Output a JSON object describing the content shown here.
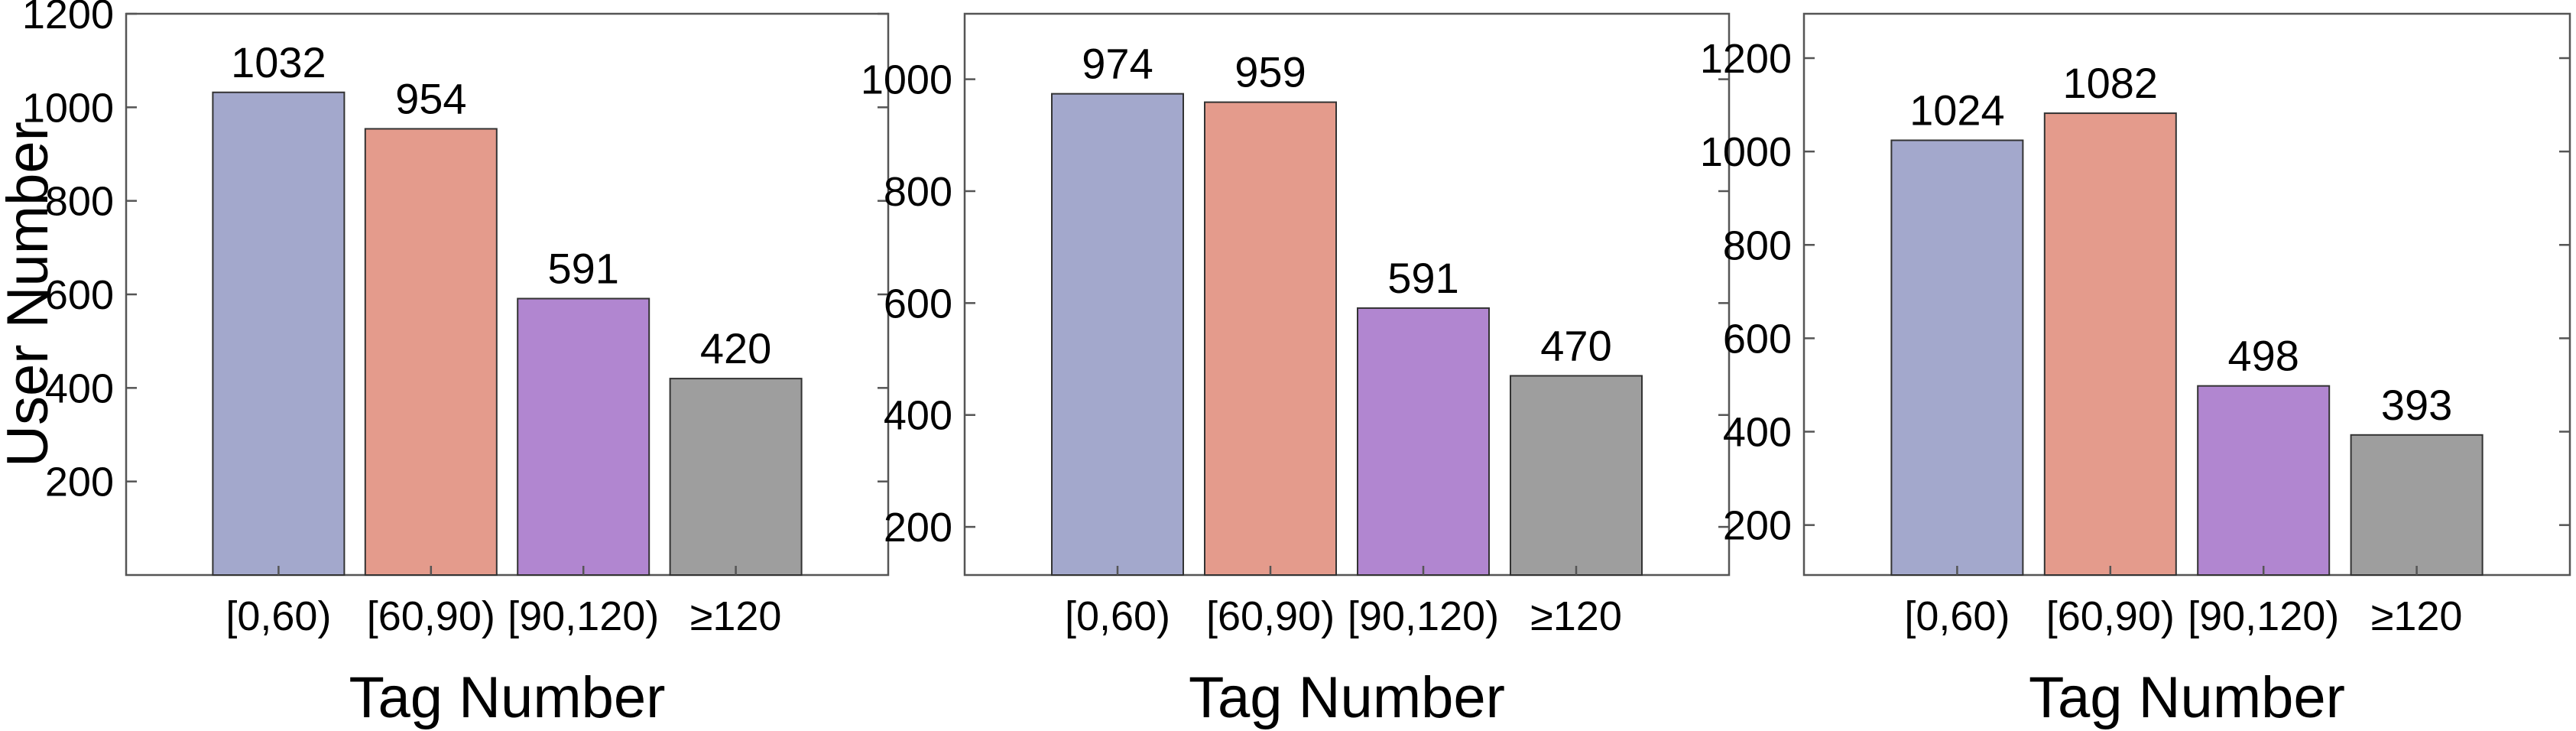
{
  "chart_data": [
    {
      "type": "bar",
      "categories": [
        "[0,60)",
        "[60,90)",
        "[90,120)",
        "≥120"
      ],
      "values": [
        1032,
        954,
        591,
        420
      ],
      "colors": [
        "#a3a8cc",
        "#e49b8c",
        "#b186d0",
        "#9e9e9e"
      ],
      "xlabel": "Tag Number",
      "ylabel": "User Number",
      "ylim": [
        0,
        1200
      ],
      "yticks": [
        200,
        400,
        600,
        800,
        1000,
        1200
      ],
      "grid": false
    },
    {
      "type": "bar",
      "categories": [
        "[0,60)",
        "[60,90)",
        "[90,120)",
        "≥120"
      ],
      "values": [
        974,
        959,
        591,
        470
      ],
      "colors": [
        "#a3a8cc",
        "#e49b8c",
        "#b186d0",
        "#9e9e9e"
      ],
      "xlabel": "Tag Number",
      "ylabel": "",
      "ylim": [
        114,
        1117
      ],
      "yticks": [
        200,
        400,
        600,
        800,
        1000
      ],
      "grid": false
    },
    {
      "type": "bar",
      "categories": [
        "[0,60)",
        "[60,90)",
        "[90,120)",
        "≥120"
      ],
      "values": [
        1024,
        1082,
        498,
        393
      ],
      "colors": [
        "#a3a8cc",
        "#e49b8c",
        "#b186d0",
        "#9e9e9e"
      ],
      "xlabel": "Tag Number",
      "ylabel": "",
      "ylim": [
        93,
        1295
      ],
      "yticks": [
        200,
        400,
        600,
        800,
        1000,
        1200
      ],
      "grid": false
    }
  ]
}
